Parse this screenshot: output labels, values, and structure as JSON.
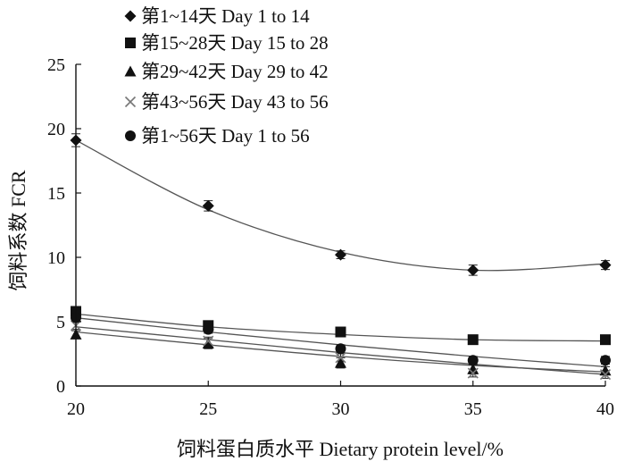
{
  "chart_data": {
    "type": "scatter",
    "xlabel": "饲料蛋白质水平  Dietary protein level/%",
    "ylabel": "饲料系数  FCR",
    "xlim": [
      20,
      40
    ],
    "ylim": [
      0,
      25
    ],
    "x_ticks": [
      "20",
      "25",
      "30",
      "35",
      "40"
    ],
    "y_ticks": [
      "0",
      "5",
      "10",
      "15",
      "20",
      "25"
    ],
    "grid": false,
    "legend_position": "top-left",
    "x": [
      20,
      25,
      30,
      35,
      40
    ],
    "series": [
      {
        "name": "第1~14天  Day 1 to 14",
        "marker": "diamond",
        "values": [
          19.1,
          14.0,
          10.2,
          9.0,
          9.4
        ],
        "errors": [
          0.5,
          0.4,
          0.3,
          0.4,
          0.35
        ],
        "fit": [
          19.1,
          13.7,
          10.4,
          9.0,
          9.5
        ]
      },
      {
        "name": "第15~28天  Day 15 to 28",
        "marker": "square",
        "values": [
          5.8,
          4.7,
          4.2,
          3.6,
          3.6
        ],
        "errors": [
          0.3,
          0.3,
          0.3,
          0.3,
          0.3
        ],
        "fit": [
          5.6,
          4.6,
          4.0,
          3.6,
          3.5
        ]
      },
      {
        "name": "第29~42天  Day 29 to 42",
        "marker": "triangle",
        "values": [
          4.0,
          3.3,
          1.8,
          1.3,
          1.2
        ],
        "errors": [
          0.3,
          0.4,
          0.4,
          0.35,
          0.3
        ],
        "fit": [
          4.2,
          3.2,
          2.3,
          1.6,
          1.1
        ]
      },
      {
        "name": "第43~56天  Day 43 to 56",
        "marker": "x",
        "values": [
          4.7,
          3.5,
          2.2,
          1.0,
          0.9
        ],
        "errors": [
          0.3,
          0.3,
          0.3,
          0.3,
          0.3
        ],
        "fit": [
          4.6,
          3.6,
          2.6,
          1.7,
          0.9
        ]
      },
      {
        "name": "第1~56天  Day 1 to 56",
        "marker": "circle",
        "values": [
          5.3,
          4.4,
          2.9,
          2.0,
          2.0
        ],
        "errors": [
          0.3,
          0.3,
          0.3,
          0.3,
          0.3
        ],
        "fit": [
          5.3,
          4.2,
          3.2,
          2.3,
          1.5
        ]
      }
    ]
  }
}
